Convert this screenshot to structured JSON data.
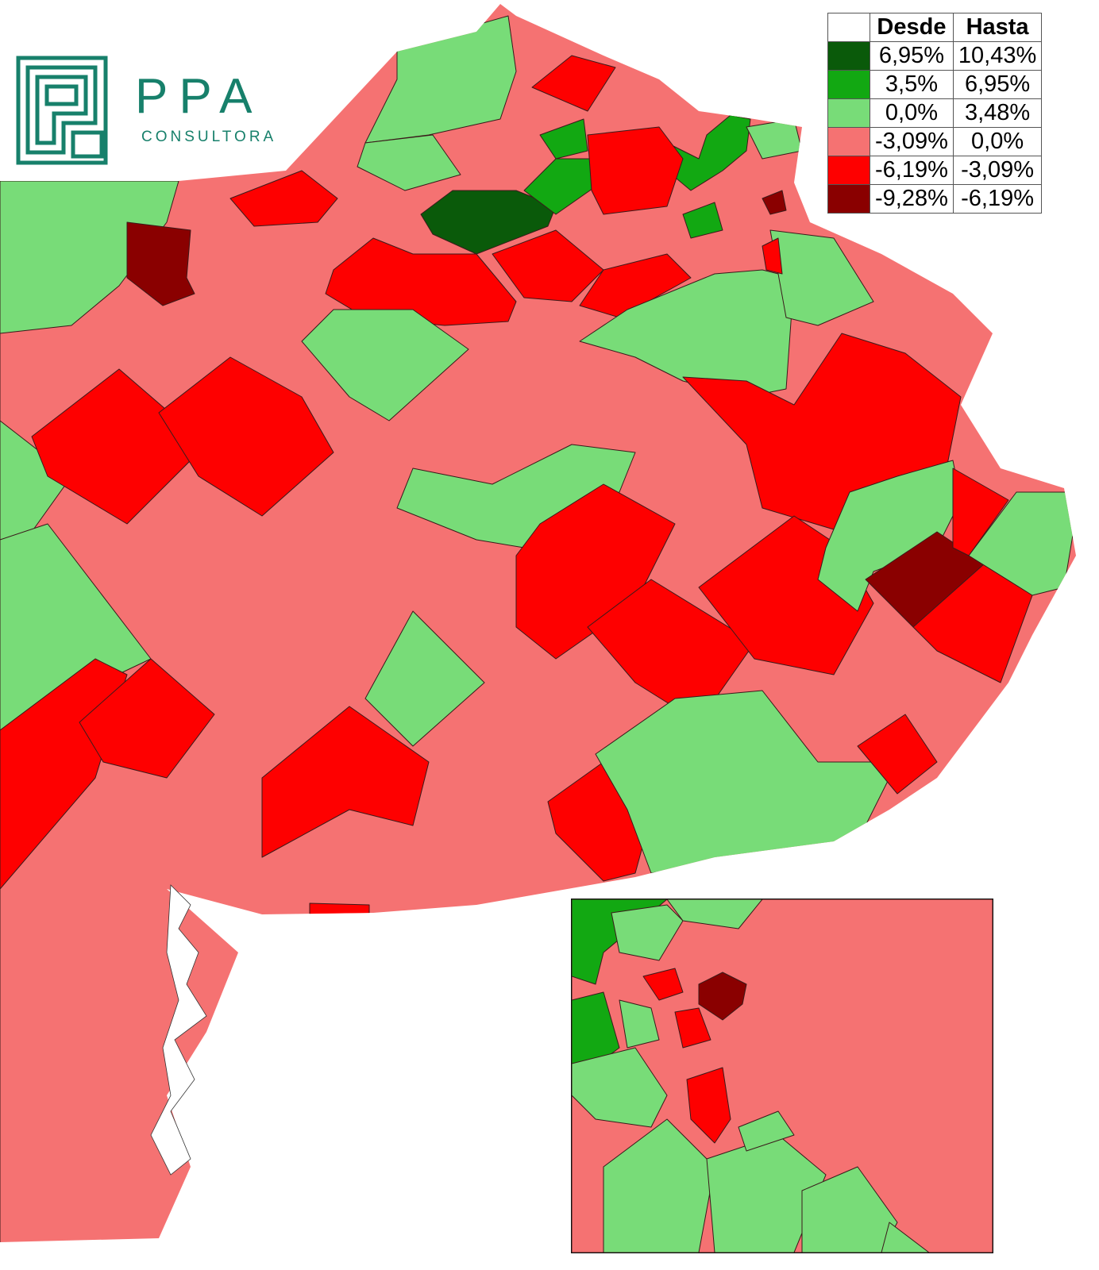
{
  "logo": {
    "name": "PPA",
    "subtitle": "CONSULTORA"
  },
  "legend": {
    "headers": [
      "Desde",
      "Hasta"
    ],
    "rows": [
      {
        "color": "#0a5a0a",
        "from": "6,95%",
        "to": "10,43%"
      },
      {
        "color": "#12a812",
        "from": "3,5%",
        "to": "6,95%"
      },
      {
        "color": "#78dc78",
        "from": "0,0%",
        "to": "3,48%"
      },
      {
        "color": "#f57272",
        "from": "-3,09%",
        "to": "0,0%"
      },
      {
        "color": "#fe0000",
        "from": "-6,19%",
        "to": "-3,09%"
      },
      {
        "color": "#8a0000",
        "from": "-9,28%",
        "to": "-6,19%"
      }
    ]
  }
}
